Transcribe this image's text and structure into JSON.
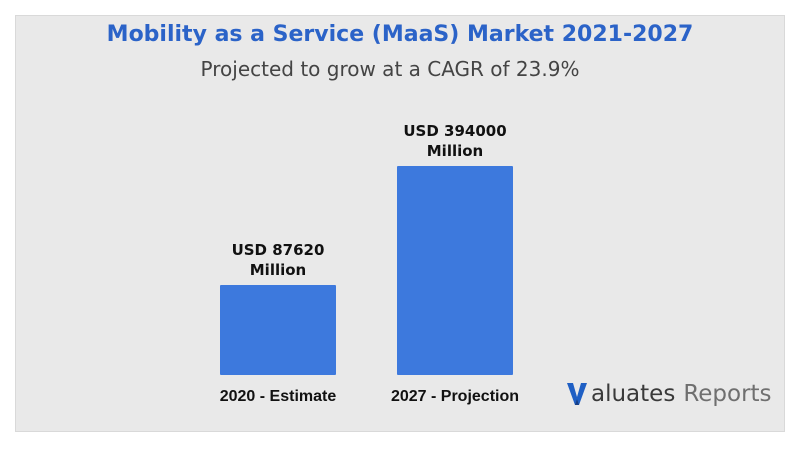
{
  "header": {
    "title": "Mobility as a Service (MaaS) Market 2021-2027",
    "subtitle": "Projected to grow at a CAGR of 23.9%"
  },
  "colors": {
    "title": "#2b63c8",
    "bar": "#3d79dd",
    "background": "#e9e9e9",
    "logo_accent": "#1f5fc4"
  },
  "chart_data": {
    "type": "bar",
    "title": "Mobility as a Service (MaaS) Market 2021-2027",
    "subtitle": "Projected to grow at a CAGR of 23.9%",
    "categories": [
      "2020 - Estimate",
      "2027 - Projection"
    ],
    "values": [
      87620,
      394000
    ],
    "value_labels": [
      [
        "USD 87620",
        "Million"
      ],
      [
        "USD 394000",
        "Million"
      ]
    ],
    "unit": "USD Million",
    "xlabel": "",
    "ylabel": "",
    "grid": false,
    "legend": "none"
  },
  "logo": {
    "text_a": "aluates",
    "text_b": "Reports",
    "icon": "valuates-v-logo-icon"
  }
}
